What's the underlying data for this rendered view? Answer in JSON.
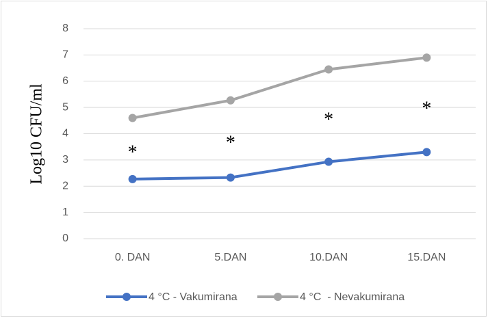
{
  "chart_data": {
    "type": "line",
    "y_label": "Log10 CFU/ml",
    "categories": [
      "0. DAN",
      "5.DAN",
      "10.DAN",
      "15.DAN"
    ],
    "series": [
      {
        "name": "4 °C - Vakumirana",
        "color": "#4472c4",
        "values": [
          2.27,
          2.33,
          2.93,
          3.3
        ]
      },
      {
        "name": "4 °C  - Nevakumirana",
        "color": "#a5a5a5",
        "values": [
          4.6,
          5.27,
          6.45,
          6.9
        ]
      }
    ],
    "annotations": [
      "*",
      "*",
      "*",
      "*"
    ],
    "ylim": [
      0,
      8
    ],
    "yticks": [
      0,
      1,
      2,
      3,
      4,
      5,
      6,
      7,
      8
    ],
    "grid": true
  }
}
